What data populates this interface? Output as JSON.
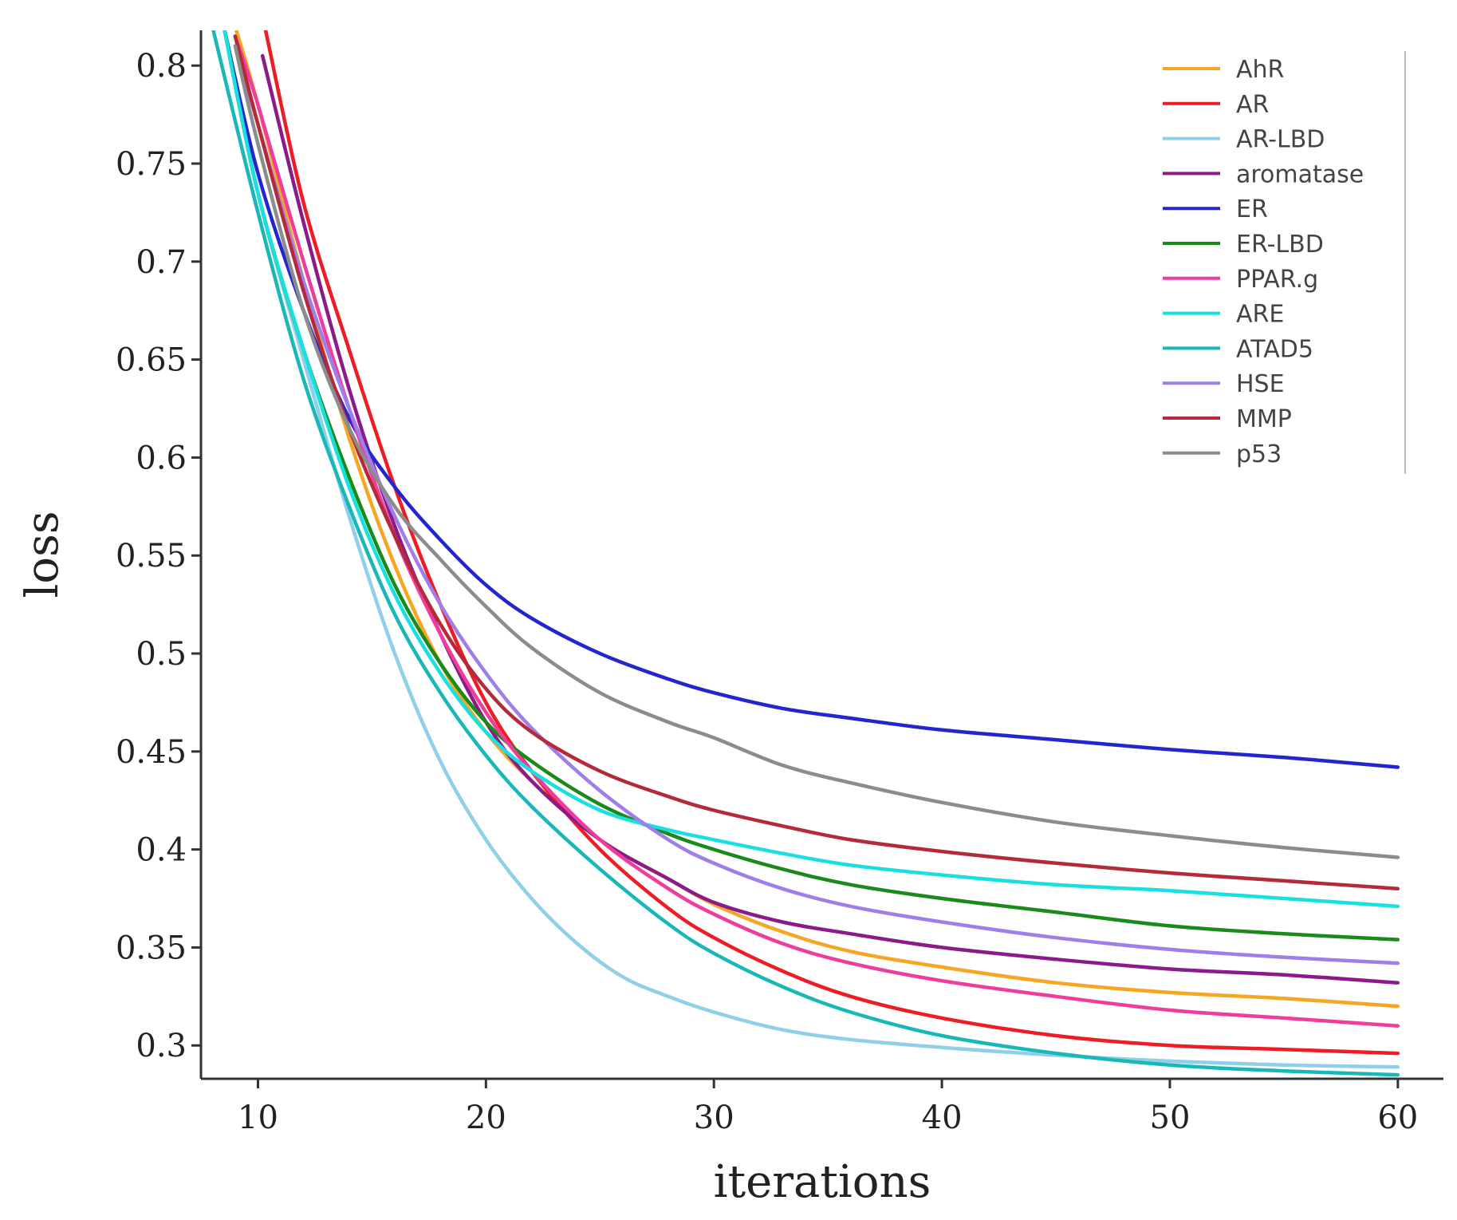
{
  "chart_data": {
    "type": "line",
    "title": "",
    "xlabel": "iterations",
    "ylabel": "loss",
    "xlim": [
      7.5,
      62
    ],
    "ylim": [
      0.283,
      0.818
    ],
    "xticks": [
      10,
      20,
      30,
      40,
      50,
      60
    ],
    "yticks": [
      0.3,
      0.35,
      0.4,
      0.45,
      0.5,
      0.55,
      0.6,
      0.65,
      0.7,
      0.75,
      0.8
    ],
    "ytick_labels": [
      "0.3",
      "0.35",
      "0.4",
      "0.45",
      "0.5",
      "0.55",
      "0.6",
      "0.65",
      "0.7",
      "0.75",
      "0.8"
    ],
    "legend_position": "top-right",
    "grid": false,
    "series": [
      {
        "name": "AhR",
        "color": "#f5a623",
        "x": [
          9,
          10,
          12,
          14,
          16,
          18,
          20,
          22,
          25,
          28,
          30,
          33,
          36,
          40,
          45,
          50,
          55,
          60
        ],
        "y": [
          0.82,
          0.78,
          0.69,
          0.61,
          0.545,
          0.495,
          0.46,
          0.435,
          0.405,
          0.385,
          0.372,
          0.358,
          0.348,
          0.34,
          0.332,
          0.327,
          0.324,
          0.32
        ]
      },
      {
        "name": "AR",
        "color": "#ee1c25",
        "x": [
          10.3,
          12,
          14,
          16,
          18,
          20,
          22,
          25,
          28,
          30,
          33,
          36,
          40,
          45,
          50,
          55,
          60
        ],
        "y": [
          0.82,
          0.73,
          0.655,
          0.585,
          0.525,
          0.475,
          0.44,
          0.4,
          0.37,
          0.355,
          0.338,
          0.325,
          0.314,
          0.305,
          0.3,
          0.298,
          0.296
        ]
      },
      {
        "name": "AR-LBD",
        "color": "#8fd0e8",
        "x": [
          8.5,
          10,
          12,
          14,
          16,
          18,
          20,
          22,
          24,
          26,
          28,
          30,
          33,
          36,
          40,
          45,
          50,
          55,
          60
        ],
        "y": [
          0.82,
          0.735,
          0.65,
          0.57,
          0.5,
          0.445,
          0.405,
          0.375,
          0.352,
          0.335,
          0.325,
          0.317,
          0.308,
          0.303,
          0.299,
          0.295,
          0.292,
          0.29,
          0.289
        ]
      },
      {
        "name": "aromatase",
        "color": "#8b1a8b",
        "x": [
          10.2,
          12,
          14,
          16,
          18,
          20,
          22,
          25,
          28,
          30,
          33,
          36,
          40,
          45,
          50,
          55,
          60
        ],
        "y": [
          0.805,
          0.72,
          0.635,
          0.565,
          0.51,
          0.465,
          0.435,
          0.405,
          0.385,
          0.373,
          0.363,
          0.357,
          0.35,
          0.344,
          0.339,
          0.336,
          0.332
        ]
      },
      {
        "name": "ER",
        "color": "#2525d0",
        "x": [
          8.5,
          10,
          12,
          14,
          16,
          18,
          20,
          22,
          25,
          28,
          30,
          33,
          36,
          40,
          45,
          50,
          55,
          60
        ],
        "y": [
          0.82,
          0.745,
          0.675,
          0.62,
          0.585,
          0.558,
          0.535,
          0.518,
          0.5,
          0.487,
          0.48,
          0.472,
          0.467,
          0.461,
          0.456,
          0.451,
          0.447,
          0.442
        ]
      },
      {
        "name": "ER-LBD",
        "color": "#1a8a1a",
        "x": [
          8.5,
          10,
          12,
          14,
          16,
          18,
          20,
          22,
          25,
          28,
          30,
          33,
          36,
          40,
          45,
          50,
          55,
          60
        ],
        "y": [
          0.82,
          0.735,
          0.655,
          0.59,
          0.535,
          0.495,
          0.465,
          0.445,
          0.423,
          0.408,
          0.4,
          0.39,
          0.382,
          0.375,
          0.368,
          0.361,
          0.357,
          0.354
        ]
      },
      {
        "name": "PPAR.g",
        "color": "#ee3d9b",
        "x": [
          9,
          10,
          12,
          14,
          16,
          18,
          20,
          22,
          25,
          28,
          30,
          33,
          36,
          40,
          45,
          50,
          55,
          60
        ],
        "y": [
          0.815,
          0.78,
          0.7,
          0.625,
          0.56,
          0.51,
          0.47,
          0.44,
          0.405,
          0.38,
          0.367,
          0.352,
          0.342,
          0.333,
          0.325,
          0.318,
          0.314,
          0.31
        ]
      },
      {
        "name": "ARE",
        "color": "#19e0e0",
        "x": [
          8.5,
          10,
          12,
          14,
          16,
          18,
          20,
          22,
          25,
          28,
          30,
          33,
          36,
          40,
          45,
          50,
          55,
          60
        ],
        "y": [
          0.82,
          0.735,
          0.655,
          0.585,
          0.53,
          0.49,
          0.46,
          0.44,
          0.42,
          0.41,
          0.405,
          0.398,
          0.392,
          0.387,
          0.382,
          0.379,
          0.375,
          0.371
        ]
      },
      {
        "name": "ATAD5",
        "color": "#19b8b8",
        "x": [
          8,
          10,
          12,
          14,
          16,
          18,
          20,
          22,
          25,
          28,
          30,
          33,
          36,
          40,
          45,
          50,
          55,
          60
        ],
        "y": [
          0.82,
          0.725,
          0.64,
          0.575,
          0.52,
          0.48,
          0.448,
          0.422,
          0.39,
          0.362,
          0.347,
          0.33,
          0.317,
          0.305,
          0.296,
          0.29,
          0.287,
          0.285
        ]
      },
      {
        "name": "HSE",
        "color": "#a07ee8",
        "x": [
          9,
          10,
          12,
          14,
          16,
          18,
          20,
          22,
          25,
          28,
          30,
          33,
          36,
          40,
          45,
          50,
          55,
          60
        ],
        "y": [
          0.81,
          0.77,
          0.69,
          0.625,
          0.57,
          0.525,
          0.49,
          0.462,
          0.43,
          0.405,
          0.393,
          0.38,
          0.371,
          0.363,
          0.355,
          0.349,
          0.345,
          0.342
        ]
      },
      {
        "name": "MMP",
        "color": "#b52a3a",
        "x": [
          9,
          10,
          12,
          14,
          16,
          18,
          20,
          22,
          25,
          28,
          30,
          33,
          36,
          40,
          45,
          50,
          55,
          60
        ],
        "y": [
          0.815,
          0.77,
          0.685,
          0.615,
          0.56,
          0.515,
          0.482,
          0.46,
          0.44,
          0.427,
          0.42,
          0.412,
          0.405,
          0.399,
          0.393,
          0.388,
          0.384,
          0.38
        ]
      },
      {
        "name": "p53",
        "color": "#8c8c8c",
        "x": [
          9,
          10,
          12,
          14,
          16,
          18,
          20,
          22,
          25,
          28,
          30,
          33,
          36,
          40,
          45,
          50,
          55,
          60
        ],
        "y": [
          0.81,
          0.76,
          0.675,
          0.615,
          0.575,
          0.548,
          0.524,
          0.503,
          0.48,
          0.465,
          0.457,
          0.443,
          0.434,
          0.424,
          0.414,
          0.407,
          0.401,
          0.396
        ]
      }
    ]
  }
}
